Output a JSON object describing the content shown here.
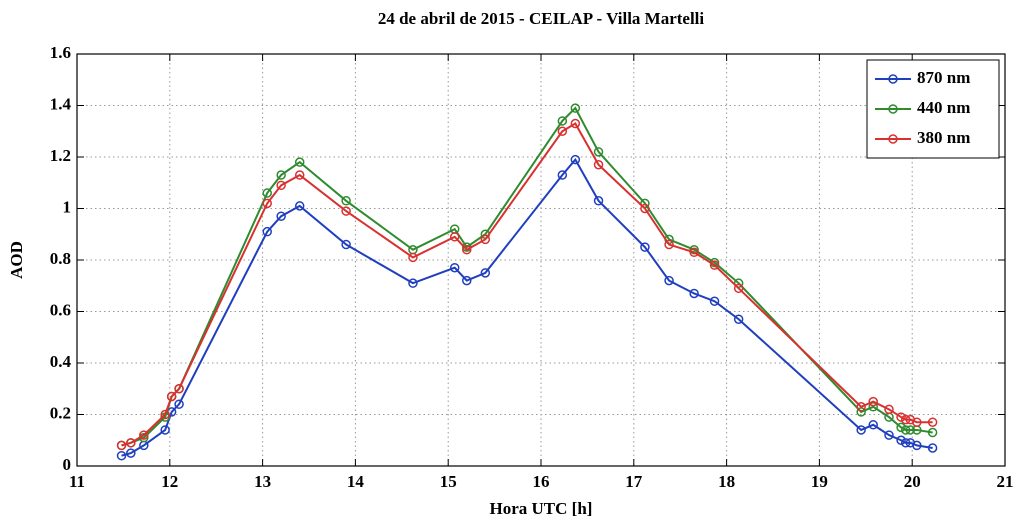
{
  "chart_data": {
    "type": "line",
    "title": "24 de abril de 2015 - CEILAP - Villa Martelli",
    "xlabel": "Hora UTC [h]",
    "ylabel": "AOD",
    "x": [
      11.48,
      11.58,
      11.72,
      11.95,
      12.02,
      12.1,
      13.05,
      13.2,
      13.4,
      13.9,
      14.62,
      15.07,
      15.2,
      15.4,
      16.23,
      16.37,
      16.62,
      17.12,
      17.38,
      17.65,
      17.87,
      18.13,
      19.45,
      19.58,
      19.75,
      19.88,
      19.93,
      19.98,
      20.05,
      20.22
    ],
    "series": [
      {
        "name": "870 nm",
        "color": "#1f3fbf",
        "values": [
          0.04,
          0.05,
          0.08,
          0.14,
          0.21,
          0.24,
          0.91,
          0.97,
          1.01,
          0.86,
          0.71,
          0.77,
          0.72,
          0.75,
          1.13,
          1.19,
          1.03,
          0.85,
          0.72,
          0.67,
          0.64,
          0.57,
          0.14,
          0.16,
          0.12,
          0.1,
          0.09,
          0.09,
          0.08,
          0.07
        ]
      },
      {
        "name": "440 nm",
        "color": "#2e8b2e",
        "values": [
          0.08,
          0.09,
          0.11,
          0.19,
          0.27,
          0.3,
          1.06,
          1.13,
          1.18,
          1.03,
          0.84,
          0.92,
          0.85,
          0.9,
          1.34,
          1.39,
          1.22,
          1.02,
          0.88,
          0.84,
          0.79,
          0.71,
          0.21,
          0.23,
          0.19,
          0.15,
          0.14,
          0.14,
          0.14,
          0.13
        ]
      },
      {
        "name": "380 nm",
        "color": "#d93030",
        "values": [
          0.08,
          0.09,
          0.12,
          0.2,
          0.27,
          0.3,
          1.02,
          1.09,
          1.13,
          0.99,
          0.81,
          0.89,
          0.84,
          0.88,
          1.3,
          1.33,
          1.17,
          1.0,
          0.86,
          0.83,
          0.78,
          0.69,
          0.23,
          0.25,
          0.22,
          0.19,
          0.18,
          0.18,
          0.17,
          0.17
        ]
      }
    ],
    "xlim": [
      11,
      21
    ],
    "xticks": [
      11,
      12,
      13,
      14,
      15,
      16,
      17,
      18,
      19,
      20,
      21
    ],
    "ylim": [
      0,
      1.6
    ],
    "yticks": [
      0,
      0.2,
      0.4,
      0.6,
      0.8,
      1,
      1.2,
      1.4,
      1.6
    ],
    "grid": true,
    "legend": "upper right"
  }
}
